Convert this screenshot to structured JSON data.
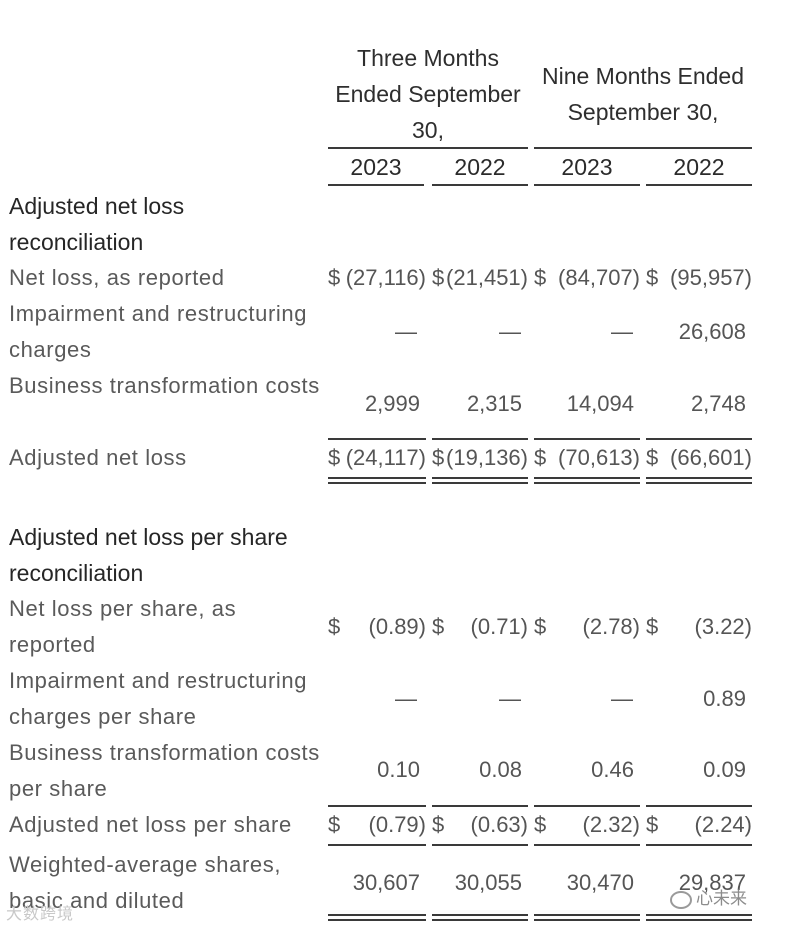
{
  "headers": {
    "three_months": "Three Months Ended September 30,",
    "nine_months": "Nine Months Ended September 30,",
    "years": [
      "2023",
      "2022",
      "2023",
      "2022"
    ]
  },
  "section1": {
    "title": "Adjusted net loss reconciliation",
    "rows": [
      {
        "label": "Net loss, as reported",
        "currency": [
          "$",
          "$",
          "$",
          "$"
        ],
        "values": [
          "(27,116)",
          "(21,451)",
          "(84,707)",
          "(95,957)"
        ]
      },
      {
        "label": "Impairment and restructuring charges",
        "currency": [
          "",
          "",
          "",
          ""
        ],
        "values": [
          "—",
          "—",
          "—",
          "26,608"
        ]
      },
      {
        "label": "Business transformation costs",
        "currency": [
          "",
          "",
          "",
          ""
        ],
        "values": [
          "2,999",
          "2,315",
          "14,094",
          "2,748"
        ]
      },
      {
        "label": "Adjusted net loss",
        "currency": [
          "$",
          "$",
          "$",
          "$"
        ],
        "values": [
          "(24,117)",
          "(19,136)",
          "(70,613)",
          "(66,601)"
        ]
      }
    ]
  },
  "section2": {
    "title": "Adjusted net loss per share reconciliation",
    "rows": [
      {
        "label": "Net loss per share, as reported",
        "currency": [
          "$",
          "$",
          "$",
          "$"
        ],
        "values": [
          "(0.89)",
          "(0.71)",
          "(2.78)",
          "(3.22)"
        ]
      },
      {
        "label": "Impairment and restructuring charges per share",
        "currency": [
          "",
          "",
          "",
          ""
        ],
        "values": [
          "—",
          "—",
          "—",
          "0.89"
        ]
      },
      {
        "label": "Business transformation costs per share",
        "currency": [
          "",
          "",
          "",
          ""
        ],
        "values": [
          "0.10",
          "0.08",
          "0.46",
          "0.09"
        ]
      },
      {
        "label": "Adjusted net loss per share",
        "currency": [
          "$",
          "$",
          "$",
          "$"
        ],
        "values": [
          "(0.79)",
          "(0.63)",
          "(2.32)",
          "(2.24)"
        ]
      },
      {
        "label": "Weighted-average shares, basic and diluted",
        "currency": [
          "",
          "",
          "",
          ""
        ],
        "values": [
          "30,607",
          "30,055",
          "30,470",
          "29,837"
        ]
      }
    ]
  },
  "watermarks": {
    "left": "大数跨境",
    "right": "心未来"
  }
}
